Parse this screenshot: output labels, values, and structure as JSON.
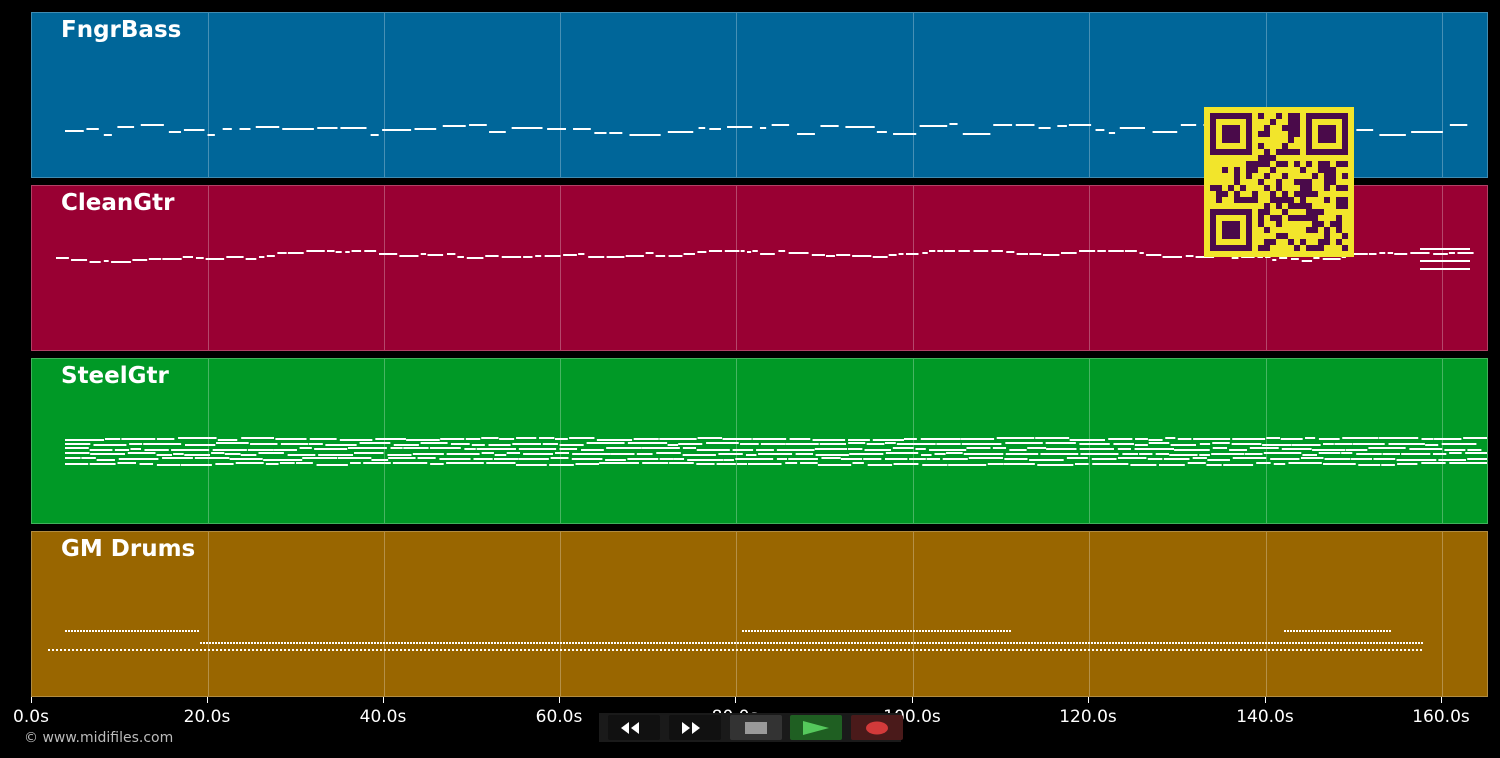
{
  "tracks": [
    {
      "name": "FngrBass",
      "color": "#006699"
    },
    {
      "name": "CleanGtr",
      "color": "#990033"
    },
    {
      "name": "SteelGtr",
      "color": "#009926"
    },
    {
      "name": "GM Drums",
      "color": "#996600"
    }
  ],
  "timeline": {
    "ticks": [
      "0.0s",
      "20.0s",
      "40.0s",
      "60.0s",
      "80.0s",
      "100.0s",
      "120.0s",
      "140.0s",
      "160.0s"
    ]
  },
  "footer": {
    "copyright": "© www.midifiles.com"
  },
  "transport": {
    "buttons": [
      {
        "name": "rewind",
        "icon": "rewind-icon"
      },
      {
        "name": "fast-forward",
        "icon": "fast-forward-icon"
      },
      {
        "name": "stop",
        "icon": "stop-icon"
      },
      {
        "name": "play",
        "icon": "play-icon"
      },
      {
        "name": "record",
        "icon": "record-icon"
      }
    ]
  },
  "overlay": {
    "qr_code": "qr-code",
    "qr_colors": {
      "fg": "#4a0a4a",
      "bg": "#f2e52b"
    }
  }
}
